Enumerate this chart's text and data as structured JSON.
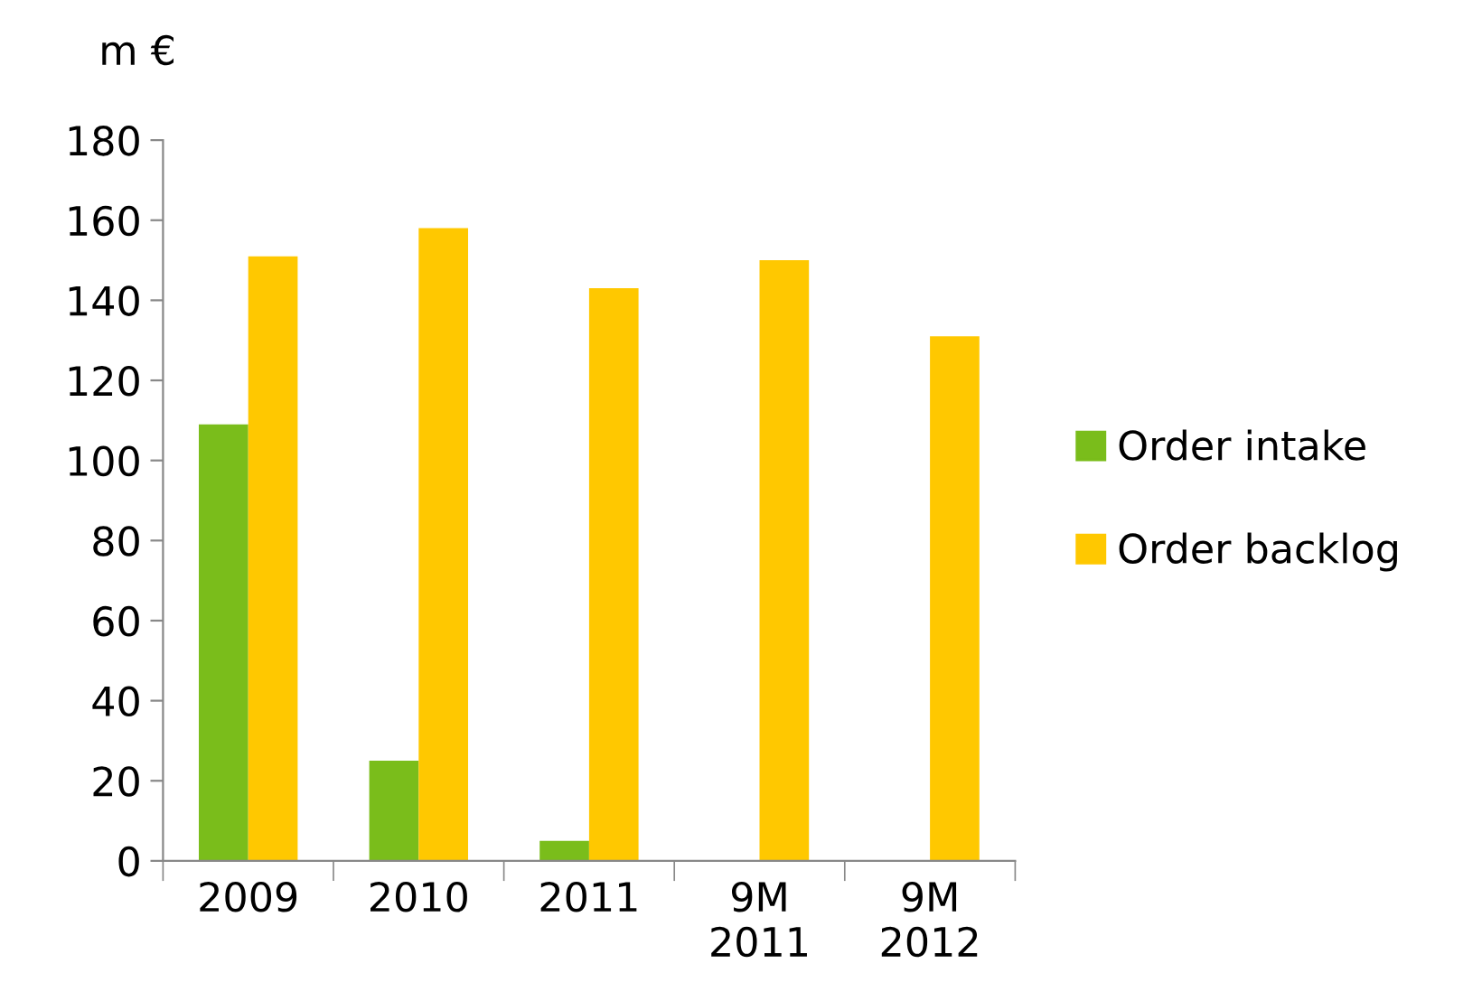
{
  "chart_data": {
    "type": "bar",
    "ylabel": "m €",
    "categories": [
      "2009",
      "2010",
      "2011",
      "9M\n2011",
      "9M\n2012"
    ],
    "series": [
      {
        "name": "Order intake",
        "color": "#7abd1b",
        "values": [
          109,
          25,
          5,
          null,
          null
        ]
      },
      {
        "name": "Order backlog",
        "color": "#ffc800",
        "values": [
          151,
          158,
          143,
          150,
          131
        ]
      }
    ],
    "ylim": [
      0,
      180
    ],
    "yticks": [
      0,
      20,
      40,
      60,
      80,
      100,
      120,
      140,
      160,
      180
    ],
    "grid": false,
    "legend": "right"
  }
}
